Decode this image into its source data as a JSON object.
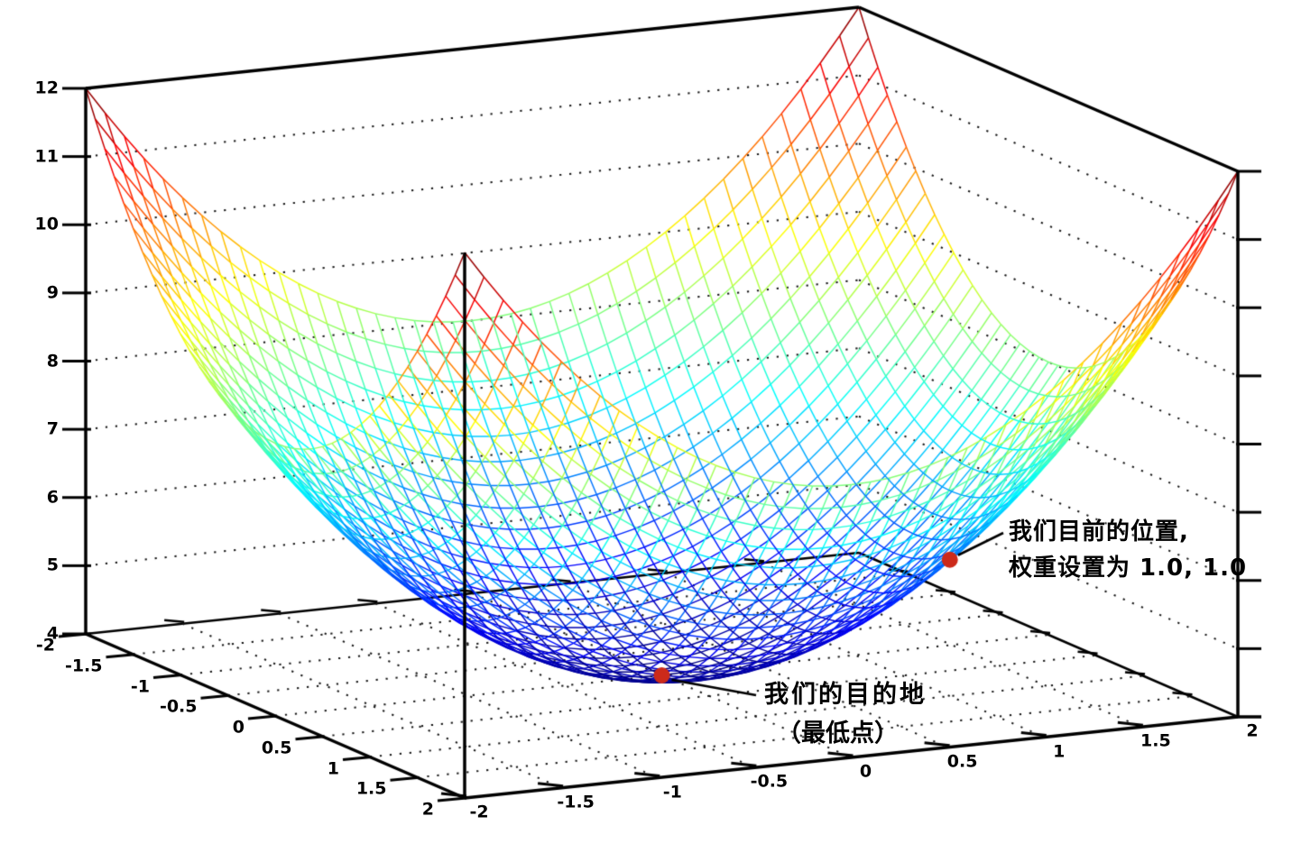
{
  "figure": {
    "description": "3D wireframe surface plot of a loss bowl (paraboloid) with two annotated points"
  },
  "chart_data": {
    "type": "surface",
    "surface": {
      "formula": "z = x^2 + y^2 + 4",
      "x_range": [
        -2,
        2
      ],
      "y_range": [
        -2,
        2
      ],
      "z_range": [
        4,
        12
      ],
      "grid_step": 0.1,
      "colormap": "jet",
      "style": "wireframe"
    },
    "axes": {
      "x": {
        "ticks": [
          -2,
          -1.5,
          -1,
          -0.5,
          0,
          0.5,
          1,
          1.5,
          2
        ],
        "labels": [
          "-2",
          "-1.5",
          "-1",
          "-0.5",
          "0",
          "0.5",
          "1",
          "1.5",
          "2"
        ]
      },
      "y": {
        "ticks": [
          -2,
          -1.5,
          -1,
          -0.5,
          0,
          0.5,
          1,
          1.5,
          2
        ],
        "labels": [
          "-2",
          "-1.5",
          "-1",
          "-0.5",
          "0",
          "0.5",
          "1",
          "1.5",
          "2"
        ]
      },
      "z": {
        "ticks": [
          4,
          5,
          6,
          7,
          8,
          9,
          10,
          11,
          12
        ],
        "labels": [
          "4",
          "5",
          "6",
          "7",
          "8",
          "9",
          "10",
          "11",
          "12"
        ]
      }
    },
    "grid": {
      "style": "dotted",
      "wall_lines_z": [
        5,
        6,
        7,
        8,
        9,
        10,
        11
      ],
      "floor_lines": [
        -1.5,
        -1,
        -0.5,
        0,
        0.5,
        1,
        1.5
      ]
    },
    "annotations": [
      {
        "id": "current-position",
        "point": [
          1,
          1,
          6
        ],
        "weights": [
          1.0,
          1.0
        ],
        "text_lines": [
          "我们目前的位置,",
          "权重设置为 1.0, 1.0"
        ]
      },
      {
        "id": "destination",
        "point": [
          0,
          0,
          4
        ],
        "text_lines": [
          "我们的目的地",
          "（最低点）"
        ]
      }
    ],
    "colors": {
      "marker": "#cc2a1a",
      "axis": "#000000",
      "grid_dots": "#151515",
      "background": "#ffffff"
    }
  }
}
